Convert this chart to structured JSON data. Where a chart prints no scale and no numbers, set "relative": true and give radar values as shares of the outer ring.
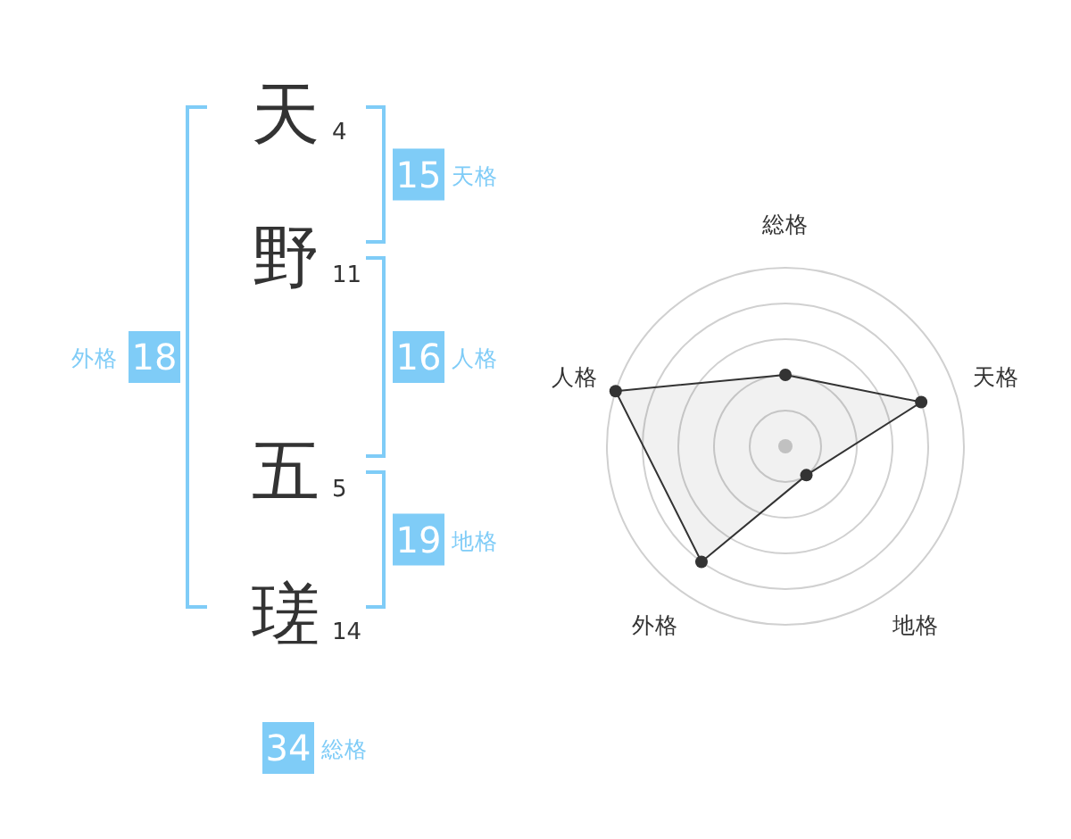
{
  "chart_data": [
    {
      "type": "other",
      "categories": [
        "天",
        "野",
        "五",
        "瑳"
      ],
      "values": [
        4,
        11,
        5,
        14
      ],
      "data_labels": true,
      "color": "#7fccf7",
      "annotations": [
        "15",
        "天格",
        "16",
        "人格",
        "19",
        "地格",
        "18",
        "外格",
        "34",
        "総格"
      ]
    },
    {
      "type": "radar",
      "categories": [
        "総格",
        "天格",
        "地格",
        "外格",
        "人格"
      ],
      "relative": true,
      "series": [
        {
          "color": "#333333",
          "values": [
            0.4,
            0.8,
            0.2,
            0.8,
            1
          ]
        }
      ],
      "marker": "circle",
      "grid": true
    }
  ]
}
